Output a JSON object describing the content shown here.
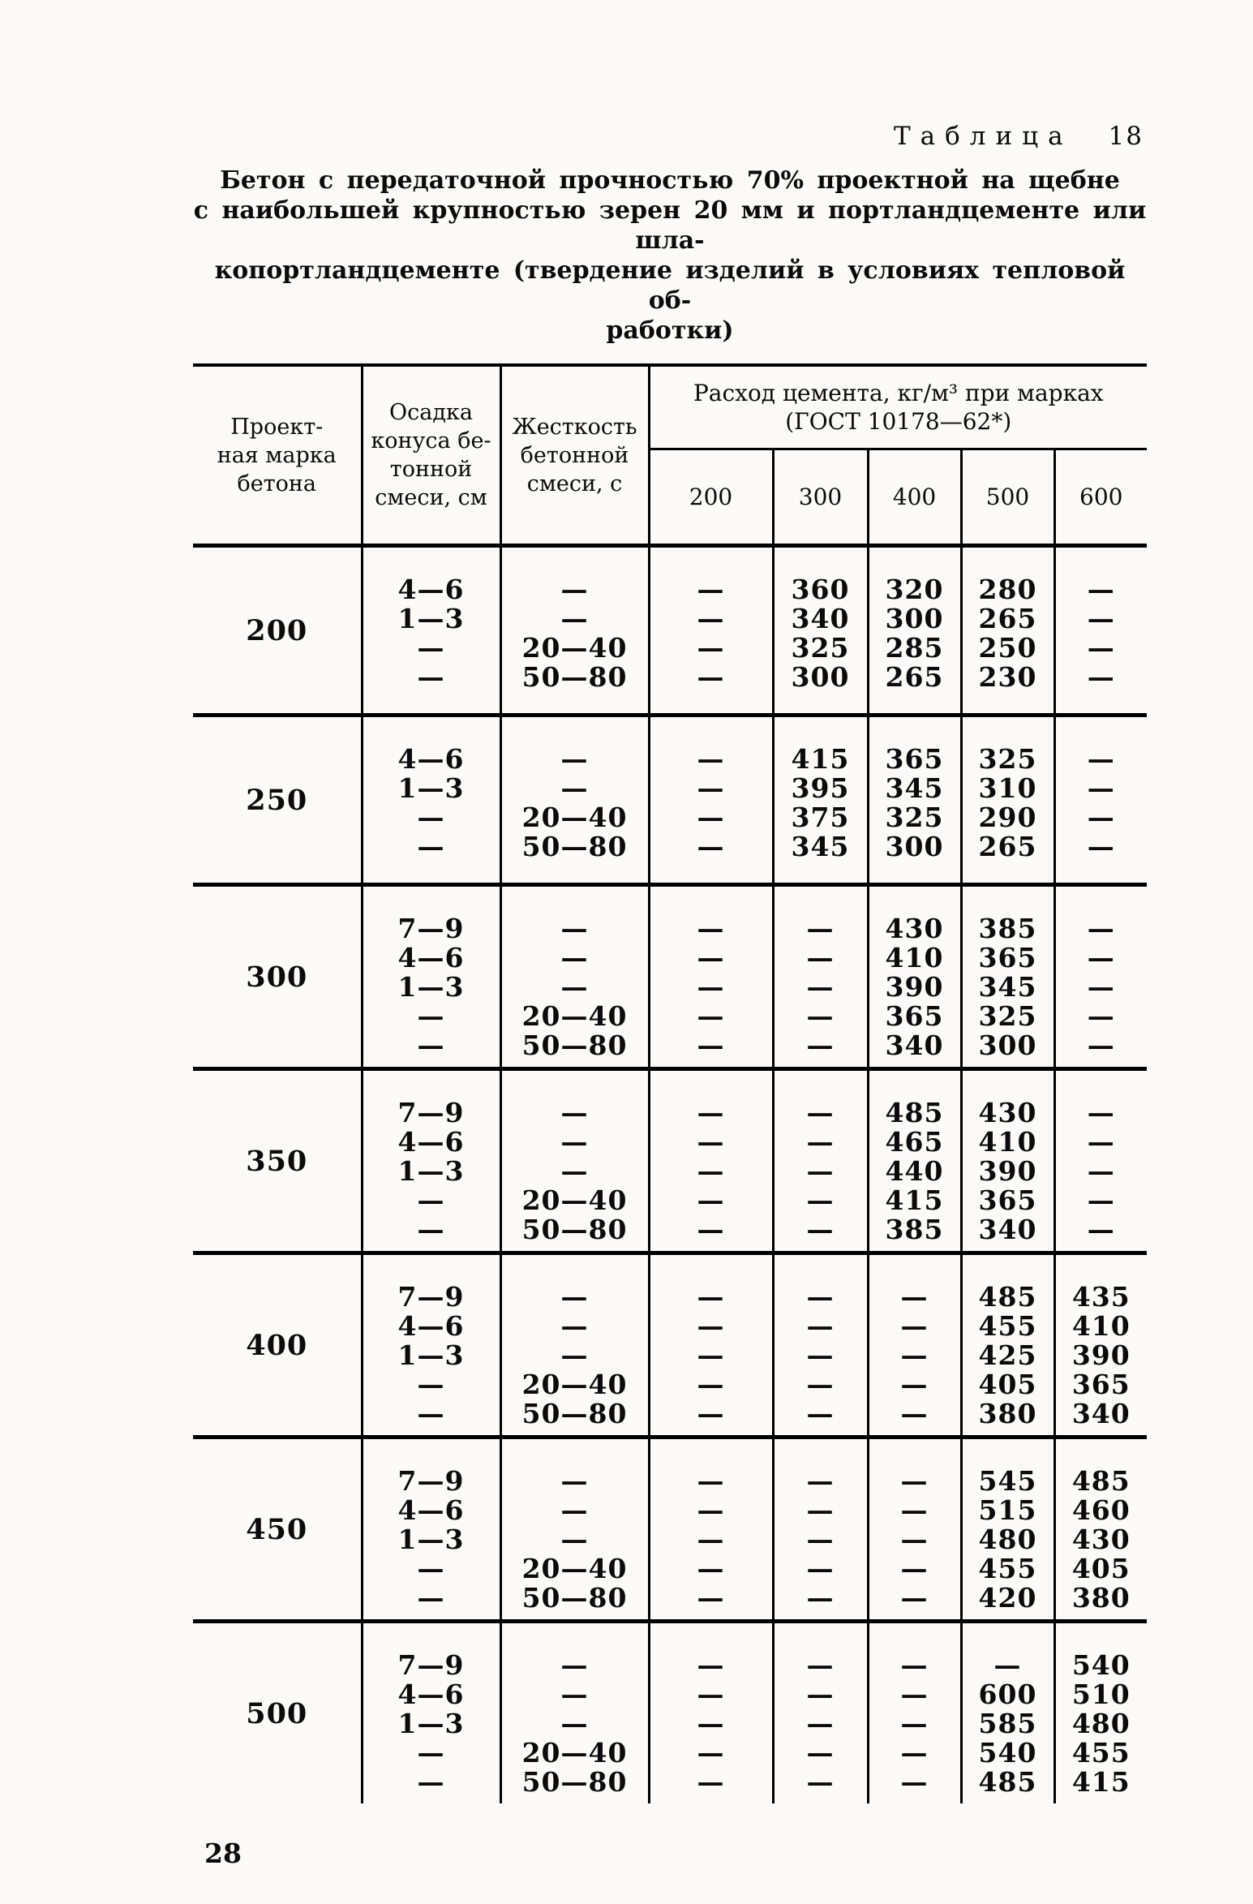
{
  "caption": {
    "word": "Таблица",
    "number": "18"
  },
  "title_lines": [
    "Бетон с передаточной прочностью 70% проектной на щебне",
    "с наибольшей крупностью зерен 20 мм и портландцементе или шла-",
    "копортландцементе (твердение изделий в условиях тепловой об-",
    "работки)"
  ],
  "table": {
    "row_headers": [
      {
        "name": "grade-column-header",
        "lines": [
          "Проект-",
          "ная марка",
          "бетона"
        ]
      },
      {
        "name": "slump-column-header",
        "lines": [
          "Осадка",
          "конуса бе-",
          "тонной",
          "смеси, см"
        ]
      },
      {
        "name": "stiffness-column-header",
        "lines": [
          "Жесткость",
          "бетонной",
          "смеси, с"
        ]
      }
    ],
    "cement_header": {
      "line1": "Расход цемента, кг/м³ при марках",
      "line2": "(ГОСТ 10178—62*)"
    },
    "cement_grades": [
      "200",
      "300",
      "400",
      "500",
      "600"
    ],
    "blocks": [
      {
        "grade": "200",
        "rows": [
          [
            "4—6",
            "—",
            "—",
            "360",
            "320",
            "280",
            "—"
          ],
          [
            "1—3",
            "—",
            "—",
            "340",
            "300",
            "265",
            "—"
          ],
          [
            "—",
            "20—40",
            "—",
            "325",
            "285",
            "250",
            "—"
          ],
          [
            "—",
            "50—80",
            "—",
            "300",
            "265",
            "230",
            "—"
          ]
        ]
      },
      {
        "grade": "250",
        "rows": [
          [
            "4—6",
            "—",
            "—",
            "415",
            "365",
            "325",
            "—"
          ],
          [
            "1—3",
            "—",
            "—",
            "395",
            "345",
            "310",
            "—"
          ],
          [
            "—",
            "20—40",
            "—",
            "375",
            "325",
            "290",
            "—"
          ],
          [
            "—",
            "50—80",
            "—",
            "345",
            "300",
            "265",
            "—"
          ]
        ]
      },
      {
        "grade": "300",
        "rows": [
          [
            "7—9",
            "—",
            "—",
            "—",
            "430",
            "385",
            "—"
          ],
          [
            "4—6",
            "—",
            "—",
            "—",
            "410",
            "365",
            "—"
          ],
          [
            "1—3",
            "—",
            "—",
            "—",
            "390",
            "345",
            "—"
          ],
          [
            "—",
            "20—40",
            "—",
            "—",
            "365",
            "325",
            "—"
          ],
          [
            "—",
            "50—80",
            "—",
            "—",
            "340",
            "300",
            "—"
          ]
        ]
      },
      {
        "grade": "350",
        "rows": [
          [
            "7—9",
            "—",
            "—",
            "—",
            "485",
            "430",
            "—"
          ],
          [
            "4—6",
            "—",
            "—",
            "—",
            "465",
            "410",
            "—"
          ],
          [
            "1—3",
            "—",
            "—",
            "—",
            "440",
            "390",
            "—"
          ],
          [
            "—",
            "20—40",
            "—",
            "—",
            "415",
            "365",
            "—"
          ],
          [
            "—",
            "50—80",
            "—",
            "—",
            "385",
            "340",
            "—"
          ]
        ]
      },
      {
        "grade": "400",
        "rows": [
          [
            "7—9",
            "—",
            "—",
            "—",
            "—",
            "485",
            "435"
          ],
          [
            "4—6",
            "—",
            "—",
            "—",
            "—",
            "455",
            "410"
          ],
          [
            "1—3",
            "—",
            "—",
            "—",
            "—",
            "425",
            "390"
          ],
          [
            "—",
            "20—40",
            "—",
            "—",
            "—",
            "405",
            "365"
          ],
          [
            "—",
            "50—80",
            "—",
            "—",
            "—",
            "380",
            "340"
          ]
        ]
      },
      {
        "grade": "450",
        "rows": [
          [
            "7—9",
            "—",
            "—",
            "—",
            "—",
            "545",
            "485"
          ],
          [
            "4—6",
            "—",
            "—",
            "—",
            "—",
            "515",
            "460"
          ],
          [
            "1—3",
            "—",
            "—",
            "—",
            "—",
            "480",
            "430"
          ],
          [
            "—",
            "20—40",
            "—",
            "—",
            "—",
            "455",
            "405"
          ],
          [
            "—",
            "50—80",
            "—",
            "—",
            "—",
            "420",
            "380"
          ]
        ]
      },
      {
        "grade": "500",
        "rows": [
          [
            "7—9",
            "—",
            "—",
            "—",
            "—",
            "—",
            "540"
          ],
          [
            "4—6",
            "—",
            "—",
            "—",
            "—",
            "600",
            "510"
          ],
          [
            "1—3",
            "—",
            "—",
            "—",
            "—",
            "585",
            "480"
          ],
          [
            "—",
            "20—40",
            "—",
            "—",
            "—",
            "540",
            "455"
          ],
          [
            "—",
            "50—80",
            "—",
            "—",
            "—",
            "485",
            "415"
          ]
        ]
      }
    ]
  },
  "page": {
    "number": "28"
  }
}
